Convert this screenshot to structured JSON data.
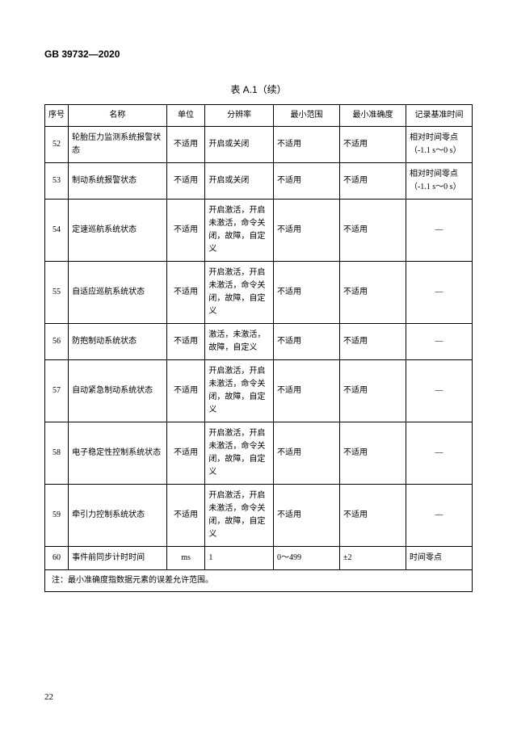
{
  "doc_id": "GB 39732—2020",
  "table_title": "表 A.1（续）",
  "page_number": "22",
  "headers": {
    "idx": "序号",
    "name": "名称",
    "unit": "单位",
    "res": "分辨率",
    "min": "最小范围",
    "acc": "最小准确度",
    "time": "记录基准时间"
  },
  "rows": [
    {
      "idx": "52",
      "name": "轮胎压力监测系统报警状态",
      "unit": "不适用",
      "res": "开启或关闭",
      "min": "不适用",
      "acc": "不适用",
      "time": "相对时间零点（-1.1 s～0 s）"
    },
    {
      "idx": "53",
      "name": "制动系统报警状态",
      "unit": "不适用",
      "res": "开启或关闭",
      "min": "不适用",
      "acc": "不适用",
      "time": "相对时间零点（-1.1 s～0 s）"
    },
    {
      "idx": "54",
      "name": "定速巡航系统状态",
      "unit": "不适用",
      "res": "开启激活，开启未激活，命令关闭，故障，自定义",
      "min": "不适用",
      "acc": "不适用",
      "time": "—"
    },
    {
      "idx": "55",
      "name": "自适应巡航系统状态",
      "unit": "不适用",
      "res": "开启激活，开启未激活，命令关闭，故障，自定义",
      "min": "不适用",
      "acc": "不适用",
      "time": "—"
    },
    {
      "idx": "56",
      "name": "防抱制动系统状态",
      "unit": "不适用",
      "res": "激活，未激活，故障，自定义",
      "min": "不适用",
      "acc": "不适用",
      "time": "—"
    },
    {
      "idx": "57",
      "name": "自动紧急制动系统状态",
      "unit": "不适用",
      "res": "开启激活，开启未激活，命令关闭，故障，自定义",
      "min": "不适用",
      "acc": "不适用",
      "time": "—"
    },
    {
      "idx": "58",
      "name": "电子稳定性控制系统状态",
      "unit": "不适用",
      "res": "开启激活，开启未激活，命令关闭，故障，自定义",
      "min": "不适用",
      "acc": "不适用",
      "time": "—"
    },
    {
      "idx": "59",
      "name": "牵引力控制系统状态",
      "unit": "不适用",
      "res": "开启激活，开启未激活，命令关闭，故障，自定义",
      "min": "不适用",
      "acc": "不适用",
      "time": "—"
    },
    {
      "idx": "60",
      "name": "事件前同步计时时间",
      "unit": "ms",
      "res": "1",
      "min": "0～499",
      "acc": "±2",
      "time": "时间零点"
    }
  ],
  "note_label": "注：",
  "note_text": "最小准确度指数据元素的误差允许范围。"
}
